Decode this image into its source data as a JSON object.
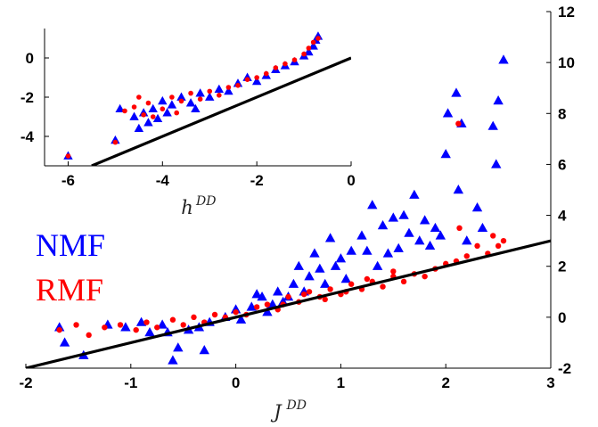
{
  "colors": {
    "nmf": "#0000ff",
    "rmf": "#ff0000",
    "fit": "#000000"
  },
  "legend": {
    "nmf": "NMF",
    "rmf": "RMF"
  },
  "chart_data": [
    {
      "type": "scatter",
      "name": "main",
      "title": "",
      "xlabel": {
        "base": "J",
        "sup": "DD"
      },
      "ylabel": "",
      "xlim": [
        -2,
        3
      ],
      "ylim": [
        -2,
        12
      ],
      "xticks": [
        "-2",
        "-1",
        "0",
        "1",
        "2",
        "3"
      ],
      "yticks": [
        "-2",
        "0",
        "2",
        "4",
        "6",
        "8",
        "10",
        "12"
      ],
      "y_axis_side": "right",
      "grid": false,
      "line": {
        "x": [
          -2,
          3
        ],
        "y": [
          -2,
          3
        ]
      },
      "series": [
        {
          "name": "NMF",
          "marker": "triangle",
          "points": [
            [
              -1.68,
              -0.4
            ],
            [
              -1.63,
              -1.0
            ],
            [
              -1.45,
              -1.5
            ],
            [
              -1.22,
              -0.3
            ],
            [
              -1.05,
              -0.4
            ],
            [
              -0.9,
              -0.2
            ],
            [
              -0.82,
              -0.6
            ],
            [
              -0.7,
              -0.3
            ],
            [
              -0.65,
              -0.6
            ],
            [
              -0.55,
              -1.2
            ],
            [
              -0.45,
              -0.5
            ],
            [
              -0.35,
              -0.4
            ],
            [
              -0.25,
              -0.2
            ],
            [
              -0.1,
              0.0
            ],
            [
              0.0,
              0.3
            ],
            [
              0.05,
              -0.1
            ],
            [
              0.15,
              0.4
            ],
            [
              0.25,
              0.8
            ],
            [
              0.3,
              0.2
            ],
            [
              0.4,
              1.0
            ],
            [
              0.45,
              0.6
            ],
            [
              0.55,
              1.3
            ],
            [
              0.6,
              2.0
            ],
            [
              0.65,
              1.0
            ],
            [
              0.7,
              1.6
            ],
            [
              0.75,
              2.5
            ],
            [
              0.8,
              1.9
            ],
            [
              0.85,
              1.3
            ],
            [
              0.9,
              3.1
            ],
            [
              0.95,
              2.0
            ],
            [
              1.0,
              2.3
            ],
            [
              1.05,
              1.5
            ],
            [
              1.1,
              2.6
            ],
            [
              1.2,
              3.2
            ],
            [
              1.25,
              2.6
            ],
            [
              1.3,
              4.4
            ],
            [
              1.35,
              2.0
            ],
            [
              1.4,
              3.6
            ],
            [
              1.45,
              2.5
            ],
            [
              1.5,
              3.9
            ],
            [
              1.55,
              2.7
            ],
            [
              1.6,
              4.0
            ],
            [
              1.65,
              3.3
            ],
            [
              1.7,
              4.8
            ],
            [
              1.75,
              3.0
            ],
            [
              1.8,
              3.8
            ],
            [
              1.85,
              2.8
            ],
            [
              1.9,
              3.5
            ],
            [
              1.95,
              3.2
            ],
            [
              2.0,
              6.4
            ],
            [
              2.02,
              8.0
            ],
            [
              2.1,
              8.8
            ],
            [
              2.12,
              5.0
            ],
            [
              2.15,
              7.6
            ],
            [
              2.2,
              3.0
            ],
            [
              2.3,
              4.3
            ],
            [
              2.35,
              3.5
            ],
            [
              2.45,
              7.5
            ],
            [
              2.48,
              6.0
            ],
            [
              2.5,
              8.5
            ],
            [
              2.55,
              10.1
            ],
            [
              0.2,
              0.9
            ],
            [
              0.35,
              0.5
            ],
            [
              0.5,
              0.8
            ],
            [
              -0.6,
              -1.7
            ],
            [
              -0.3,
              -1.3
            ]
          ]
        },
        {
          "name": "RMF",
          "marker": "circle",
          "points": [
            [
              -1.68,
              -0.5
            ],
            [
              -1.4,
              -0.7
            ],
            [
              -1.52,
              -0.3
            ],
            [
              -1.25,
              -0.4
            ],
            [
              -1.1,
              -0.3
            ],
            [
              -0.95,
              -0.5
            ],
            [
              -0.85,
              -0.2
            ],
            [
              -0.75,
              -0.4
            ],
            [
              -0.6,
              -0.1
            ],
            [
              -0.5,
              -0.3
            ],
            [
              -0.4,
              0.0
            ],
            [
              -0.3,
              -0.2
            ],
            [
              -0.2,
              0.1
            ],
            [
              -0.1,
              0.0
            ],
            [
              0.0,
              0.2
            ],
            [
              0.1,
              0.1
            ],
            [
              0.2,
              0.4
            ],
            [
              0.3,
              0.5
            ],
            [
              0.4,
              0.3
            ],
            [
              0.5,
              0.8
            ],
            [
              0.6,
              0.6
            ],
            [
              0.7,
              1.0
            ],
            [
              0.8,
              0.8
            ],
            [
              0.9,
              1.1
            ],
            [
              1.0,
              0.9
            ],
            [
              1.1,
              1.3
            ],
            [
              1.2,
              1.1
            ],
            [
              1.3,
              1.4
            ],
            [
              1.4,
              1.2
            ],
            [
              1.5,
              1.6
            ],
            [
              1.6,
              1.4
            ],
            [
              1.7,
              1.7
            ],
            [
              1.8,
              1.6
            ],
            [
              1.9,
              1.9
            ],
            [
              2.0,
              2.1
            ],
            [
              2.1,
              2.2
            ],
            [
              2.2,
              2.4
            ],
            [
              2.3,
              2.8
            ],
            [
              2.4,
              2.5
            ],
            [
              2.45,
              3.2
            ],
            [
              2.5,
              2.8
            ],
            [
              2.55,
              3.0
            ],
            [
              2.12,
              7.6
            ],
            [
              2.13,
              3.5
            ],
            [
              1.5,
              1.8
            ],
            [
              1.25,
              1.5
            ],
            [
              1.05,
              1.0
            ],
            [
              0.85,
              0.7
            ],
            [
              0.65,
              0.9
            ],
            [
              0.45,
              0.5
            ]
          ]
        }
      ]
    },
    {
      "type": "scatter",
      "name": "inset",
      "title": "",
      "xlabel": {
        "base": "h",
        "sup": "DD"
      },
      "ylabel": "",
      "xlim": [
        -6.5,
        0
      ],
      "ylim": [
        -5.5,
        1.5
      ],
      "xticks": [
        "-6",
        "-4",
        "-2",
        "0"
      ],
      "yticks": [
        "0",
        "-2",
        "-4"
      ],
      "y_axis_side": "left",
      "grid": false,
      "line": {
        "x": [
          -5.5,
          0
        ],
        "y": [
          -5.5,
          0
        ]
      },
      "series": [
        {
          "name": "NMF",
          "marker": "triangle",
          "points": [
            [
              -6.0,
              -5.0
            ],
            [
              -5.0,
              -4.2
            ],
            [
              -4.9,
              -2.6
            ],
            [
              -4.6,
              -3.0
            ],
            [
              -4.5,
              -3.6
            ],
            [
              -4.4,
              -2.8
            ],
            [
              -4.2,
              -2.6
            ],
            [
              -4.1,
              -3.1
            ],
            [
              -4.0,
              -2.2
            ],
            [
              -3.8,
              -2.4
            ],
            [
              -3.6,
              -2.0
            ],
            [
              -3.4,
              -2.3
            ],
            [
              -3.2,
              -1.8
            ],
            [
              -3.0,
              -2.0
            ],
            [
              -2.8,
              -1.6
            ],
            [
              -2.6,
              -1.7
            ],
            [
              -2.4,
              -1.3
            ],
            [
              -2.2,
              -1.0
            ],
            [
              -2.0,
              -1.2
            ],
            [
              -1.8,
              -0.9
            ],
            [
              -1.6,
              -0.6
            ],
            [
              -1.4,
              -0.4
            ],
            [
              -1.2,
              -0.2
            ],
            [
              -1.0,
              0.1
            ],
            [
              -0.9,
              0.3
            ],
            [
              -0.8,
              0.6
            ],
            [
              -0.7,
              1.1
            ],
            [
              -0.75,
              0.9
            ],
            [
              -3.9,
              -2.8
            ],
            [
              -3.3,
              -2.6
            ],
            [
              -4.3,
              -3.3
            ]
          ]
        },
        {
          "name": "RMF",
          "marker": "circle",
          "points": [
            [
              -6.0,
              -5.0
            ],
            [
              -5.0,
              -4.3
            ],
            [
              -4.8,
              -2.7
            ],
            [
              -4.6,
              -2.5
            ],
            [
              -4.5,
              -2.0
            ],
            [
              -4.3,
              -2.3
            ],
            [
              -4.2,
              -3.0
            ],
            [
              -4.0,
              -2.6
            ],
            [
              -3.8,
              -2.0
            ],
            [
              -3.6,
              -2.2
            ],
            [
              -3.4,
              -1.8
            ],
            [
              -3.2,
              -2.1
            ],
            [
              -3.0,
              -1.7
            ],
            [
              -2.8,
              -1.9
            ],
            [
              -2.6,
              -1.5
            ],
            [
              -2.4,
              -1.4
            ],
            [
              -2.2,
              -1.1
            ],
            [
              -2.0,
              -1.0
            ],
            [
              -1.8,
              -0.8
            ],
            [
              -1.6,
              -0.5
            ],
            [
              -1.4,
              -0.3
            ],
            [
              -1.2,
              -0.1
            ],
            [
              -1.0,
              0.2
            ],
            [
              -0.9,
              0.5
            ],
            [
              -0.8,
              0.8
            ],
            [
              -0.7,
              1.0
            ],
            [
              -4.4,
              -2.9
            ],
            [
              -3.7,
              -2.8
            ]
          ]
        }
      ]
    }
  ]
}
